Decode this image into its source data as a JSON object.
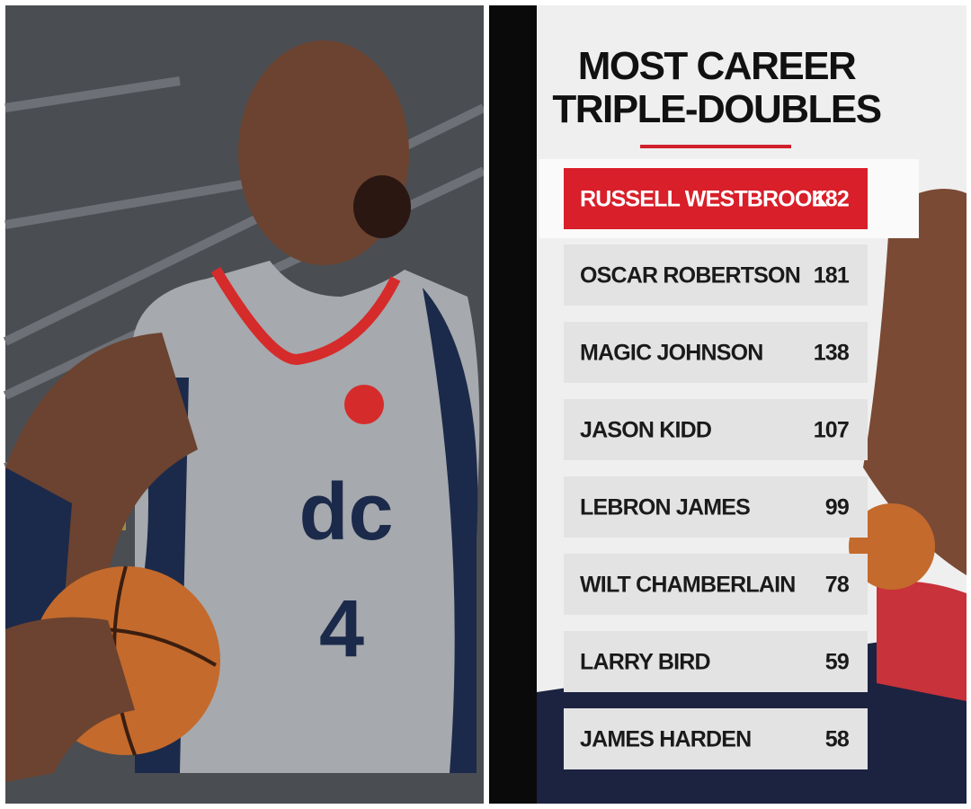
{
  "header": {
    "title_line_1": "MOST CAREER",
    "title_line_2": "TRIPLE-DOUBLES"
  },
  "table": {
    "rows": [
      {
        "name": "RUSSELL WESTBROOK",
        "value": 182
      },
      {
        "name": "OSCAR ROBERTSON",
        "value": 181
      },
      {
        "name": "MAGIC JOHNSON",
        "value": 138
      },
      {
        "name": "JASON KIDD",
        "value": 107
      },
      {
        "name": "LEBRON JAMES",
        "value": 99
      },
      {
        "name": "WILT CHAMBERLAIN",
        "value": 78
      },
      {
        "name": "LARRY BIRD",
        "value": 59
      },
      {
        "name": "JAMES HARDEN",
        "value": 58
      }
    ]
  }
}
